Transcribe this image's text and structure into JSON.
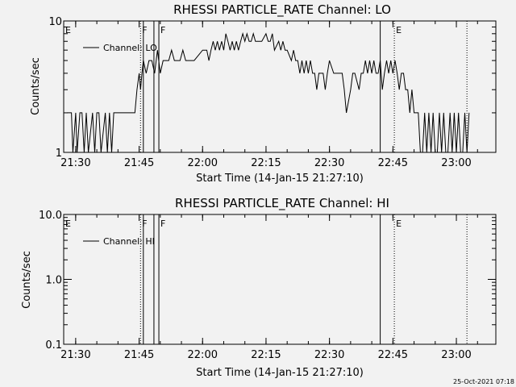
{
  "footer": {
    "timestamp": "25-Oct-2021 07:18"
  },
  "chart_data": [
    {
      "type": "line",
      "title": "RHESSI PARTICLE_RATE Channel: LO",
      "xlabel": "Start Time (14-Jan-15 21:27:10)",
      "ylabel": "Counts/sec",
      "yscale": "log",
      "ylim": [
        1,
        10
      ],
      "xlim": [
        "21:27:10",
        "23:09:20"
      ],
      "ytick_labels": [
        "1",
        "10"
      ],
      "xtick_labels": [
        "21:30",
        "21:45",
        "22:00",
        "22:15",
        "22:30",
        "22:45",
        "23:00"
      ],
      "xticks": [
        "21:30",
        "21:45",
        "22:00",
        "22:15",
        "22:30",
        "22:45",
        "23:00"
      ],
      "markers": [
        {
          "label": "E",
          "time": "21:27:10",
          "style": "dotted"
        },
        {
          "label": "F",
          "time": "21:45:20",
          "style": "dotted"
        },
        {
          "label": "",
          "time": "21:46:00",
          "style": "solid"
        },
        {
          "label": "",
          "time": "21:48:30",
          "style": "solid"
        },
        {
          "label": "F",
          "time": "21:49:40",
          "style": "solid"
        },
        {
          "label": "",
          "time": "22:42:00",
          "style": "solid"
        },
        {
          "label": "E",
          "time": "22:45:20",
          "style": "dotted"
        },
        {
          "label": "",
          "time": "23:02:30",
          "style": "dotted"
        }
      ],
      "legend": {
        "entries": [
          "Channel: LO"
        ],
        "placement": "top-left"
      },
      "series": [
        {
          "name": "Channel: LO",
          "x": [
            "21:28:00",
            "21:29:00",
            "21:29:20",
            "21:30:00",
            "21:30:20",
            "21:31:00",
            "21:31:30",
            "21:32:00",
            "21:32:30",
            "21:33:00",
            "21:34:00",
            "21:34:30",
            "21:35:00",
            "21:35:30",
            "21:36:00",
            "21:37:00",
            "21:37:30",
            "21:38:00",
            "21:38:30",
            "21:39:00",
            "21:40:00",
            "21:44:00",
            "21:44:30",
            "21:45:00",
            "21:45:20",
            "21:45:40",
            "21:46:00",
            "21:46:40",
            "21:47:20",
            "21:48:00",
            "21:48:40",
            "21:49:20",
            "21:50:00",
            "21:50:40",
            "21:51:20",
            "21:52:00",
            "21:52:40",
            "21:53:20",
            "21:54:00",
            "21:54:40",
            "21:55:20",
            "21:56:00",
            "21:57:00",
            "21:58:00",
            "22:00:00",
            "22:01:00",
            "22:01:30",
            "22:02:00",
            "22:02:30",
            "22:03:00",
            "22:03:30",
            "22:04:00",
            "22:04:30",
            "22:05:00",
            "22:05:30",
            "22:06:00",
            "22:06:30",
            "22:07:00",
            "22:07:30",
            "22:08:00",
            "22:08:30",
            "22:09:00",
            "22:09:30",
            "22:10:00",
            "22:10:30",
            "22:11:00",
            "22:11:30",
            "22:12:00",
            "22:12:30",
            "22:13:00",
            "22:14:00",
            "22:15:00",
            "22:15:30",
            "22:16:00",
            "22:16:30",
            "22:17:00",
            "22:18:00",
            "22:18:30",
            "22:19:00",
            "22:19:30",
            "22:20:00",
            "22:21:00",
            "22:21:30",
            "22:22:00",
            "22:22:30",
            "22:23:00",
            "22:23:30",
            "22:24:00",
            "22:24:30",
            "22:25:00",
            "22:25:30",
            "22:26:00",
            "22:26:30",
            "22:27:00",
            "22:27:30",
            "22:28:00",
            "22:28:30",
            "22:29:00",
            "22:29:30",
            "22:30:00",
            "22:31:00",
            "22:32:00",
            "22:33:00",
            "22:33:30",
            "22:34:00",
            "22:35:00",
            "22:35:30",
            "22:36:00",
            "22:37:00",
            "22:37:30",
            "22:38:00",
            "22:38:30",
            "22:39:00",
            "22:39:30",
            "22:40:00",
            "22:40:30",
            "22:41:00",
            "22:41:30",
            "22:42:00",
            "22:42:30",
            "22:43:00",
            "22:43:30",
            "22:44:00",
            "22:44:30",
            "22:45:00",
            "22:45:30",
            "22:46:00",
            "22:46:30",
            "22:47:00",
            "22:47:30",
            "22:48:00",
            "22:48:30",
            "22:49:00",
            "22:49:30",
            "22:50:00",
            "22:50:30",
            "22:51:00",
            "22:51:30",
            "22:52:00",
            "22:52:30",
            "22:53:00",
            "22:53:30",
            "22:54:00",
            "22:54:30",
            "22:55:00",
            "22:55:30",
            "22:56:00",
            "22:56:30",
            "22:57:00",
            "22:57:30",
            "22:58:00",
            "22:58:30",
            "22:59:00",
            "22:59:30",
            "23:00:00",
            "23:00:30",
            "23:01:00",
            "23:01:30",
            "23:02:00",
            "23:02:30",
            "23:03:00"
          ],
          "y": [
            2,
            2,
            1,
            2,
            1,
            2,
            2,
            1,
            2,
            1,
            2,
            1,
            2,
            2,
            1,
            2,
            1,
            2,
            1,
            2,
            2,
            2,
            3,
            4,
            3,
            4,
            5,
            4,
            5,
            5,
            4,
            6,
            4,
            5,
            5,
            5,
            6,
            5,
            5,
            5,
            6,
            5,
            5,
            5,
            6,
            6,
            5,
            6,
            7,
            6,
            7,
            6,
            7,
            6,
            8,
            7,
            6,
            7,
            6,
            7,
            6,
            7,
            8,
            7,
            8,
            7,
            7,
            8,
            7,
            7,
            7,
            8,
            7,
            7,
            8,
            6,
            7,
            6,
            7,
            6,
            6,
            5,
            6,
            5,
            5,
            4,
            5,
            4,
            5,
            4,
            5,
            4,
            4,
            3,
            4,
            4,
            4,
            3,
            4,
            5,
            4,
            4,
            4,
            3,
            2,
            3,
            4,
            4,
            3,
            4,
            4,
            5,
            4,
            5,
            4,
            5,
            4,
            4,
            5,
            3,
            4,
            5,
            4,
            5,
            4,
            5,
            4,
            3,
            4,
            4,
            3,
            3,
            2,
            3,
            2,
            2,
            2,
            1,
            1,
            2,
            1,
            2,
            1,
            2,
            1,
            1,
            2,
            1,
            2,
            1,
            1,
            2,
            1,
            2,
            1,
            2,
            1,
            1,
            2,
            1,
            2
          ]
        }
      ]
    },
    {
      "type": "line",
      "title": "RHESSI PARTICLE_RATE Channel: HI",
      "xlabel": "Start Time (14-Jan-15 21:27:10)",
      "ylabel": "Counts/sec",
      "yscale": "log",
      "ylim": [
        0.1,
        10
      ],
      "xlim": [
        "21:27:10",
        "23:09:20"
      ],
      "ytick_labels": [
        "0.1",
        "1.0",
        "10.0"
      ],
      "xtick_labels": [
        "21:30",
        "21:45",
        "22:00",
        "22:15",
        "22:30",
        "22:45",
        "23:00"
      ],
      "xticks": [
        "21:30",
        "21:45",
        "22:00",
        "22:15",
        "22:30",
        "22:45",
        "23:00"
      ],
      "markers": [
        {
          "label": "E",
          "time": "21:27:10",
          "style": "dotted"
        },
        {
          "label": "F",
          "time": "21:45:20",
          "style": "dotted"
        },
        {
          "label": "",
          "time": "21:46:00",
          "style": "solid"
        },
        {
          "label": "",
          "time": "21:48:30",
          "style": "solid"
        },
        {
          "label": "F",
          "time": "21:49:40",
          "style": "solid"
        },
        {
          "label": "",
          "time": "22:42:00",
          "style": "solid"
        },
        {
          "label": "E",
          "time": "22:45:20",
          "style": "dotted"
        },
        {
          "label": "",
          "time": "23:02:30",
          "style": "dotted"
        }
      ],
      "legend": {
        "entries": [
          "Channel: HI"
        ],
        "placement": "top-left"
      },
      "series": [
        {
          "name": "Channel: HI",
          "x": [],
          "y": []
        }
      ]
    }
  ]
}
